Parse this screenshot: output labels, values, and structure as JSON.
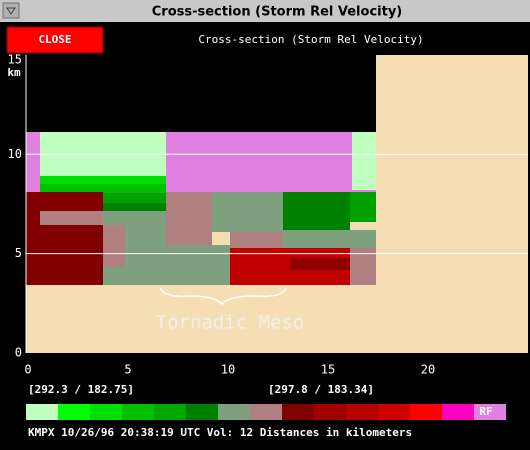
{
  "window": {
    "title": "Cross-section (Storm Rel Velocity)"
  },
  "toolbar": {
    "close_button": "CLOSE",
    "title": "Cross-section (Storm Rel Velocity)"
  },
  "plot": {
    "y_axis": {
      "unit": "km",
      "ticks": [
        0,
        5,
        10,
        15
      ]
    },
    "x_axis": {
      "ticks": [
        0,
        5,
        10,
        15,
        20
      ]
    },
    "annotation": "Tornadic Meso"
  },
  "coordinates": [
    "[292.3 / 182.75]",
    "[297.8 / 183.34]"
  ],
  "legend": {
    "rf_label": "RF"
  },
  "status": "KMPX 10/26/96 20:38:19 UTC Vol: 12 Distances in kilometers"
}
